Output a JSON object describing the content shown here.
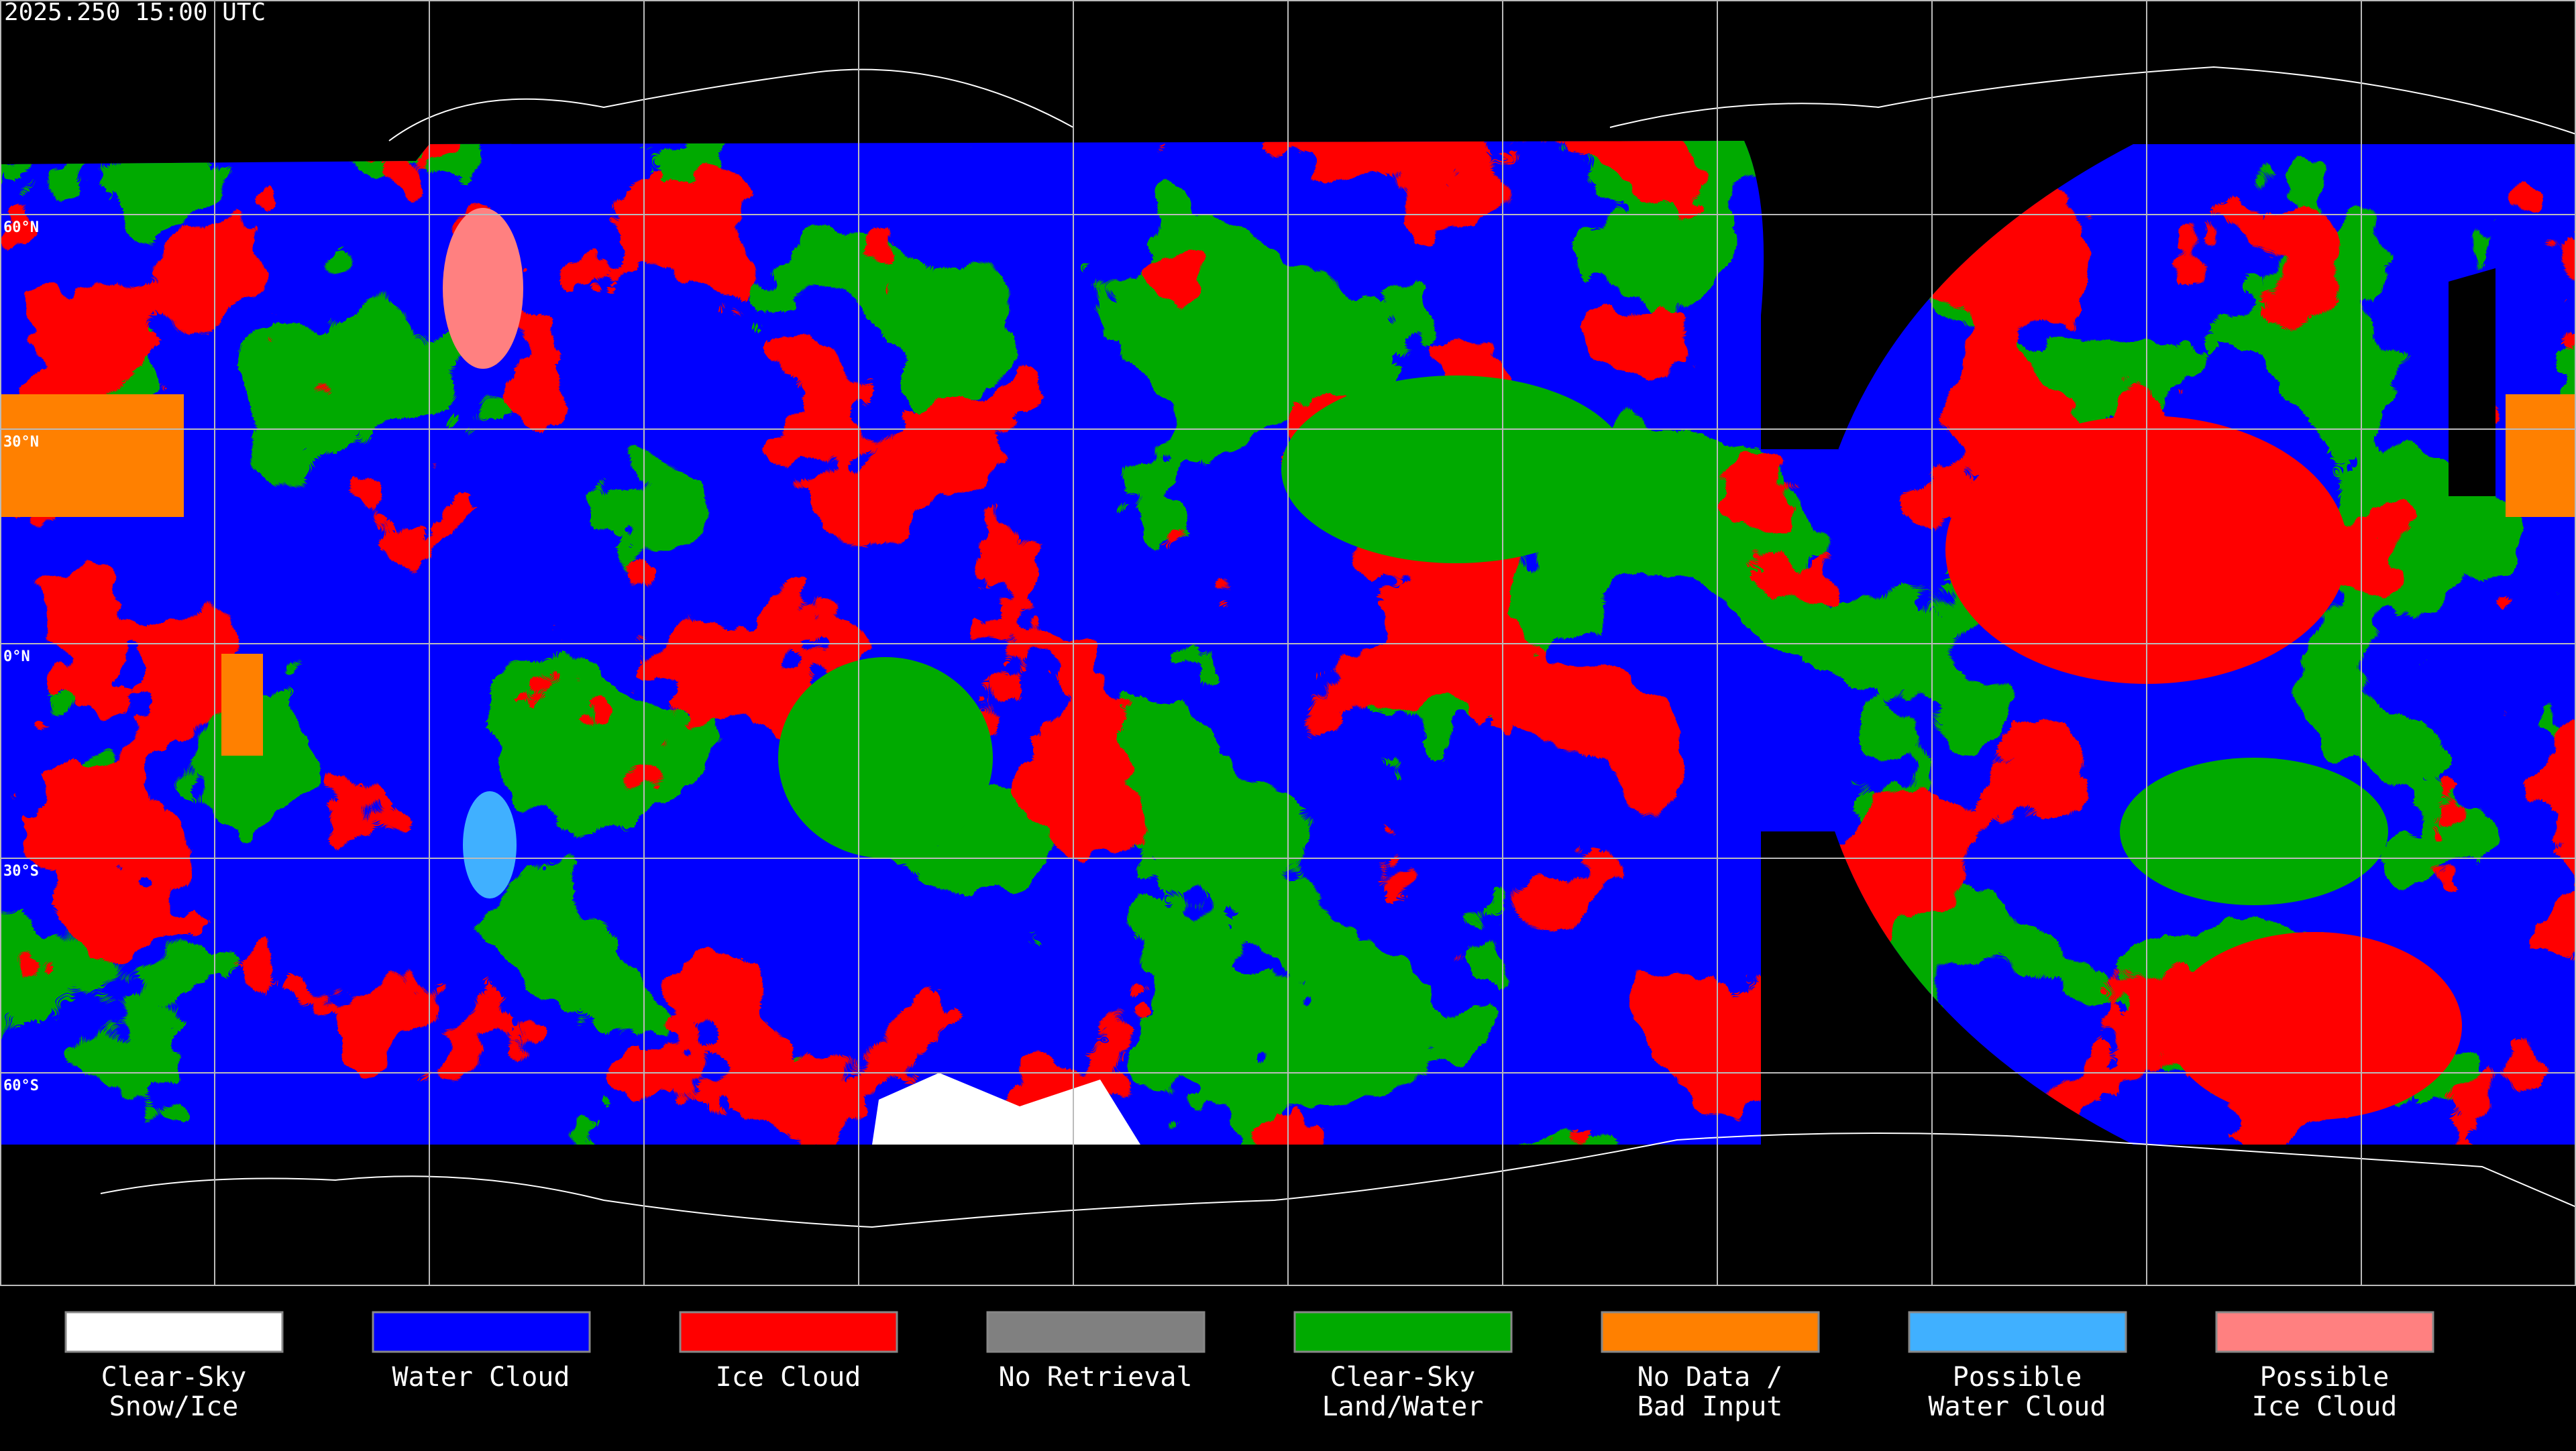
{
  "timestamp": "2025.250 15:00 UTC",
  "latitude_lines": [
    {
      "value": 60,
      "label": "60°N"
    },
    {
      "value": 30,
      "label": "30°N"
    },
    {
      "value": 0,
      "label": "0°N"
    },
    {
      "value": -30,
      "label": "30°S"
    },
    {
      "value": -60,
      "label": "60°S"
    }
  ],
  "legend": [
    {
      "label": [
        "Clear-Sky",
        "Snow/Ice"
      ],
      "color": "#ffffff"
    },
    {
      "label": [
        "Water Cloud"
      ],
      "color": "#0000ff"
    },
    {
      "label": [
        "Ice Cloud"
      ],
      "color": "#ff0000"
    },
    {
      "label": [
        "No Retrieval"
      ],
      "color": "#808080"
    },
    {
      "label": [
        "Clear-Sky",
        "Land/Water"
      ],
      "color": "#00aa00"
    },
    {
      "label": [
        "No Data /",
        "Bad Input"
      ],
      "color": "#ff8000"
    },
    {
      "label": [
        "Possible",
        "Water Cloud"
      ],
      "color": "#40b0ff"
    },
    {
      "label": [
        "Possible",
        "Ice Cloud"
      ],
      "color": "#ff8080"
    }
  ]
}
